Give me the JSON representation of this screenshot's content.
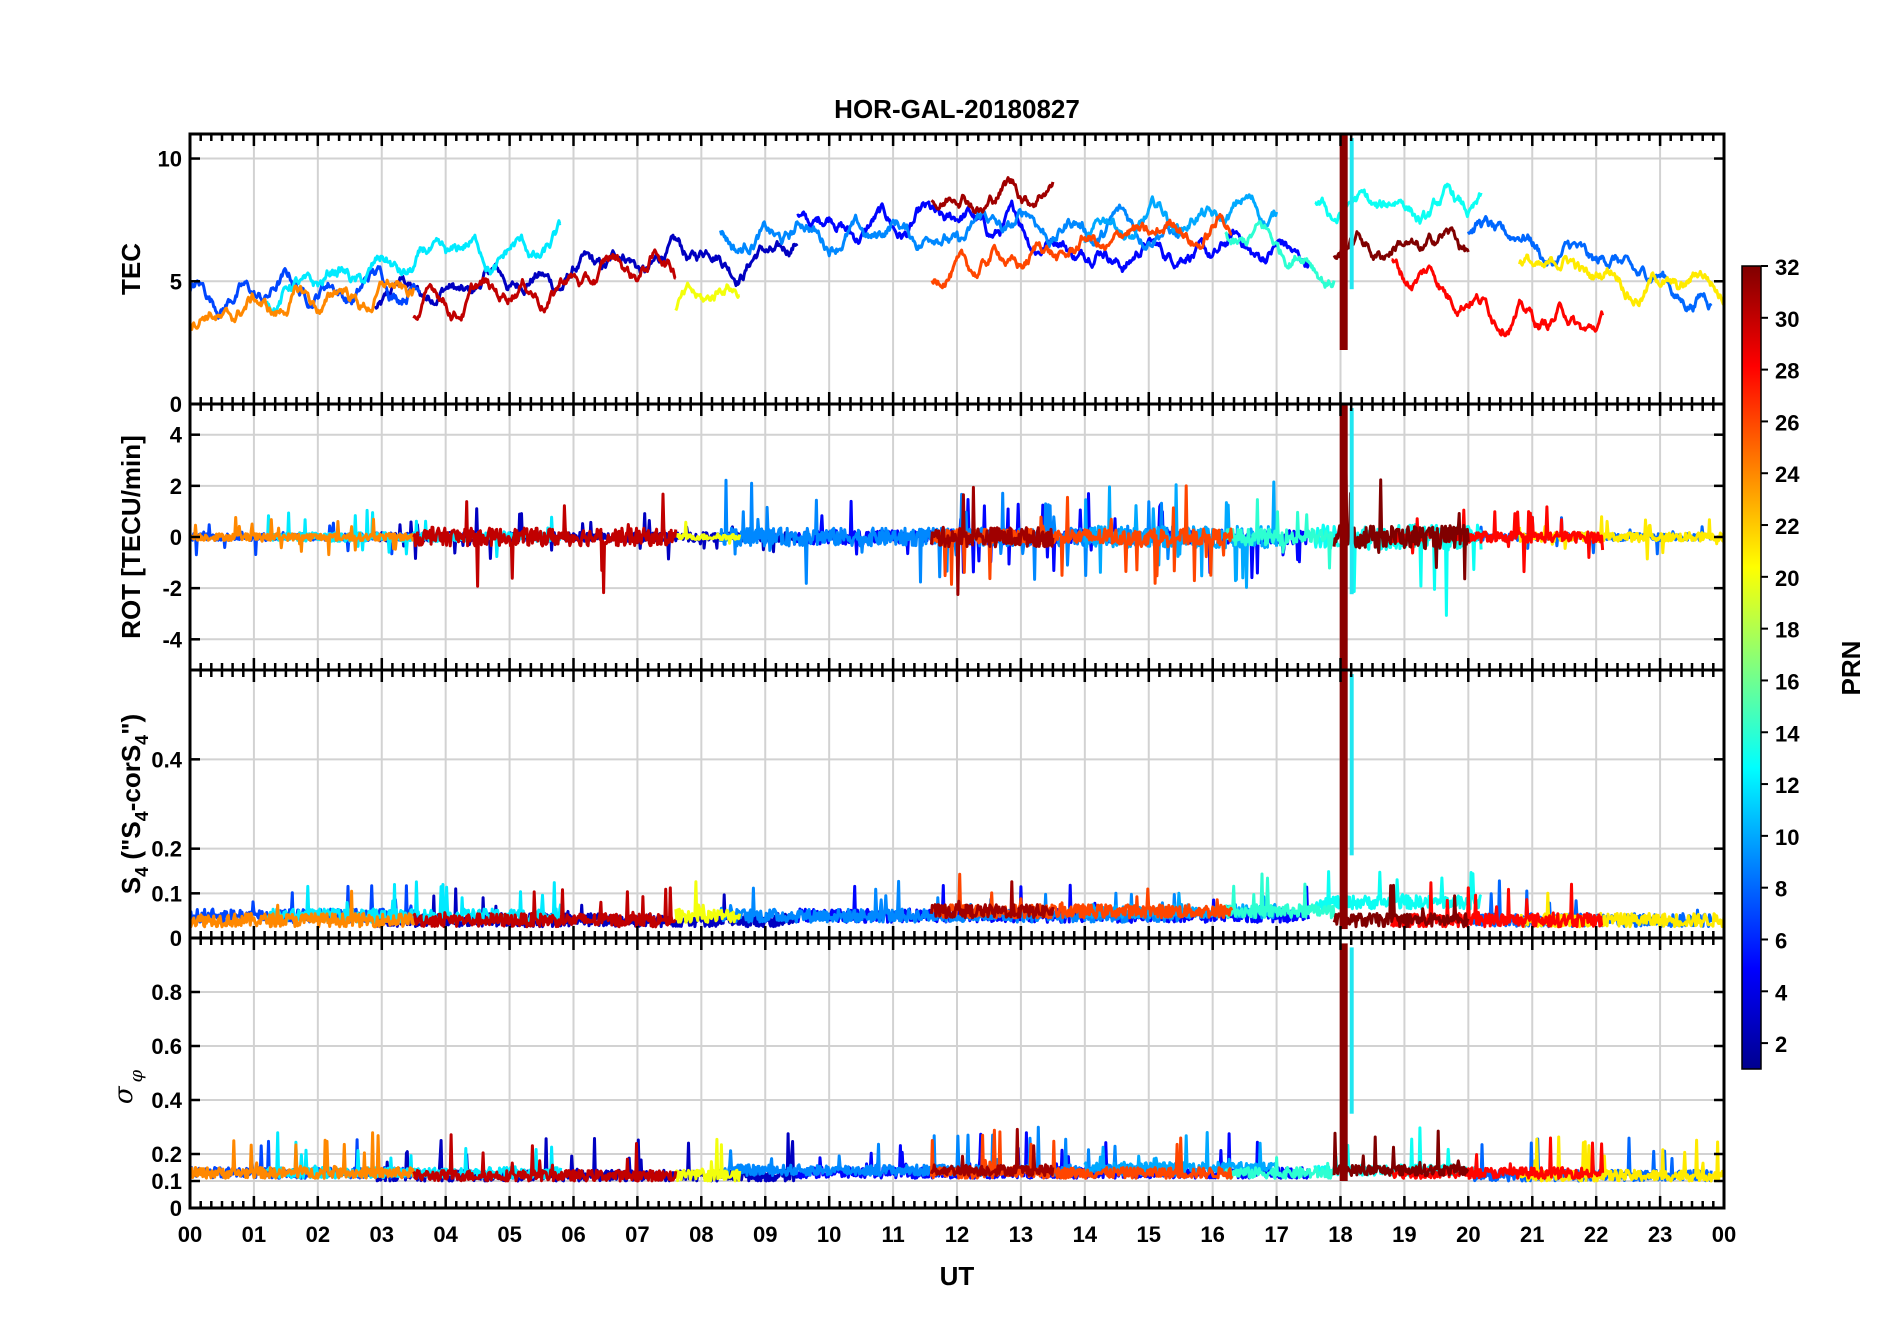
{
  "chart_data": {
    "type": "line",
    "title": "HOR-GAL-20180827",
    "xlabel": "UT",
    "x_tick_labels": [
      "00",
      "01",
      "02",
      "03",
      "04",
      "05",
      "06",
      "07",
      "08",
      "09",
      "10",
      "11",
      "12",
      "13",
      "14",
      "15",
      "16",
      "17",
      "18",
      "19",
      "20",
      "21",
      "22",
      "23",
      "00"
    ],
    "xlim": [
      0,
      24
    ],
    "grid": true,
    "colorbar": {
      "label": "PRN",
      "range": [
        1,
        32
      ],
      "colormap": "jet",
      "tick_labels": [
        "2",
        "4",
        "6",
        "8",
        "10",
        "12",
        "14",
        "16",
        "18",
        "20",
        "22",
        "24",
        "26",
        "28",
        "30",
        "32"
      ]
    },
    "panels": [
      {
        "id": "tec",
        "ylabel": "TEC",
        "ylim": [
          0,
          11
        ],
        "yticks": [
          0,
          5,
          10
        ],
        "ytick_labels": [
          "0",
          "5",
          "10"
        ]
      },
      {
        "id": "rot",
        "ylabel": "ROT [TECU/min]",
        "ylim": [
          -5.2,
          5.2
        ],
        "yticks": [
          -4,
          -2,
          0,
          2,
          4
        ],
        "ytick_labels": [
          "-4",
          "-2",
          "0",
          "2",
          "4"
        ]
      },
      {
        "id": "s4",
        "ylabel_parts": [
          "S",
          "4",
          " (\"S",
          "4",
          "-corS",
          "4",
          "\")"
        ],
        "ylim": [
          0,
          0.6
        ],
        "yticks": [
          0,
          0.1,
          0.2,
          0.4
        ],
        "ytick_labels": [
          "0",
          "0.1",
          "0.2",
          "0.4"
        ]
      },
      {
        "id": "sigma",
        "ylabel_parts": [
          "σ",
          "φ"
        ],
        "ylim": [
          0,
          1.0
        ],
        "yticks": [
          0,
          0.1,
          0.2,
          0.4,
          0.6,
          0.8
        ],
        "ytick_labels": [
          "0",
          "0.1",
          "0.2",
          "0.4",
          "0.6",
          "0.8"
        ]
      }
    ],
    "series": [
      {
        "prn": 3,
        "start": 2.9,
        "end": 9.5,
        "tec_base": 4.2,
        "tec_trend": 2.3,
        "rot_amp": 0.5,
        "s4_base": 0.04,
        "sig_base": 0.12
      },
      {
        "prn": 5,
        "start": 9.5,
        "end": 17.5,
        "tec_base": 7.5,
        "tec_trend": -1.5,
        "rot_amp": 0.8,
        "s4_base": 0.05,
        "sig_base": 0.13
      },
      {
        "prn": 7,
        "start": 0.0,
        "end": 3.6,
        "tec_base": 4.3,
        "tec_trend": 0.8,
        "rot_amp": 0.4,
        "s4_base": 0.05,
        "sig_base": 0.13
      },
      {
        "prn": 8,
        "start": 20.0,
        "end": 23.8,
        "tec_base": 7.2,
        "tec_trend": -3.0,
        "rot_amp": 0.4,
        "s4_base": 0.04,
        "sig_base": 0.12
      },
      {
        "prn": 9,
        "start": 8.3,
        "end": 15.5,
        "tec_base": 6.8,
        "tec_trend": 0.5,
        "rot_amp": 1.0,
        "s4_base": 0.05,
        "sig_base": 0.14
      },
      {
        "prn": 10,
        "start": 14.0,
        "end": 17.0,
        "tec_base": 7.0,
        "tec_trend": 0.8,
        "rot_amp": 1.2,
        "s4_base": 0.06,
        "sig_base": 0.15
      },
      {
        "prn": 12,
        "start": 1.2,
        "end": 5.8,
        "tec_base": 4.6,
        "tec_trend": 1.6,
        "rot_amp": 0.5,
        "s4_base": 0.05,
        "sig_base": 0.13
      },
      {
        "prn": 13,
        "start": 17.6,
        "end": 20.2,
        "tec_base": 8.0,
        "tec_trend": -0.2,
        "rot_amp": 1.4,
        "s4_base": 0.08,
        "sig_base": 0.14
      },
      {
        "prn": 14,
        "start": 16.2,
        "end": 17.9,
        "tec_base": 6.8,
        "tec_trend": -1.0,
        "rot_amp": 0.9,
        "s4_base": 0.06,
        "sig_base": 0.13
      },
      {
        "prn": 20,
        "start": 7.6,
        "end": 8.6,
        "tec_base": 3.8,
        "tec_trend": 0.8,
        "rot_amp": 0.3,
        "s4_base": 0.05,
        "sig_base": 0.12
      },
      {
        "prn": 21,
        "start": 20.8,
        "end": 24.0,
        "tec_base": 5.6,
        "tec_trend": -0.8,
        "rot_amp": 0.5,
        "s4_base": 0.04,
        "sig_base": 0.12
      },
      {
        "prn": 24,
        "start": 0.0,
        "end": 3.5,
        "tec_base": 3.6,
        "tec_trend": 1.0,
        "rot_amp": 0.4,
        "s4_base": 0.04,
        "sig_base": 0.13
      },
      {
        "prn": 26,
        "start": 11.6,
        "end": 16.3,
        "tec_base": 5.3,
        "tec_trend": 2.0,
        "rot_amp": 0.9,
        "s4_base": 0.06,
        "sig_base": 0.13
      },
      {
        "prn": 28,
        "start": 18.8,
        "end": 22.1,
        "tec_base": 5.5,
        "tec_trend": -2.5,
        "rot_amp": 0.6,
        "s4_base": 0.04,
        "sig_base": 0.13
      },
      {
        "prn": 30,
        "start": 3.5,
        "end": 7.6,
        "tec_base": 4.0,
        "tec_trend": 1.8,
        "rot_amp": 1.0,
        "s4_base": 0.04,
        "sig_base": 0.12
      },
      {
        "prn": 31,
        "start": 11.6,
        "end": 13.5,
        "tec_base": 8.5,
        "tec_trend": 0.5,
        "rot_amp": 1.1,
        "s4_base": 0.06,
        "sig_base": 0.14
      },
      {
        "prn": 32,
        "start": 17.9,
        "end": 20.0,
        "tec_base": 6.5,
        "tec_trend": 0.0,
        "rot_amp": 1.3,
        "s4_base": 0.04,
        "sig_base": 0.14
      }
    ],
    "events": [
      {
        "time": 18.05,
        "description": "large spike burst",
        "tec_range": [
          2.2,
          11
        ],
        "rot_abs": 5.2,
        "sigma_max": 0.98
      }
    ]
  }
}
